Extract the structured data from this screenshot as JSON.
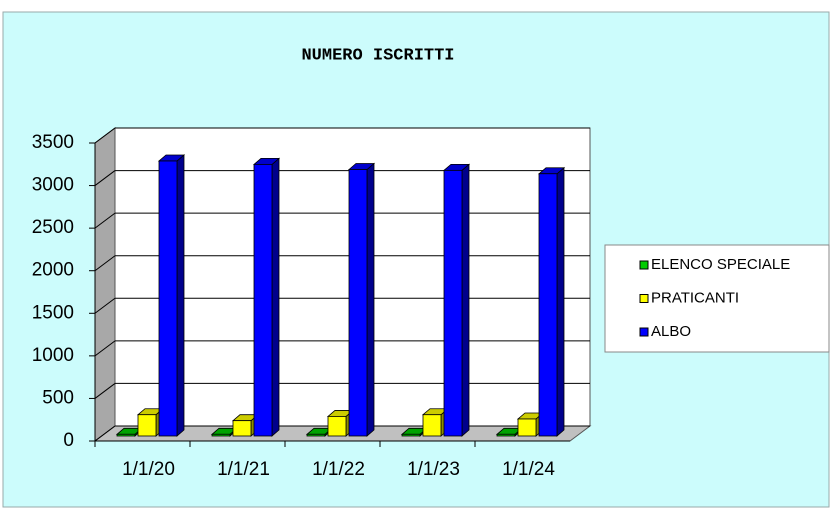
{
  "chart_data": {
    "type": "bar3d",
    "title": "NUMERO ISCRITTI",
    "categories": [
      "1/1/20",
      "1/1/21",
      "1/1/22",
      "1/1/23",
      "1/1/24"
    ],
    "series": [
      {
        "name": "ELENCO SPECIALE",
        "color": "#00cc00",
        "values": [
          20,
          20,
          20,
          20,
          20
        ]
      },
      {
        "name": "PRATICANTI",
        "color": "#ffff00",
        "values": [
          250,
          180,
          230,
          250,
          200
        ]
      },
      {
        "name": "ALBO",
        "color": "#0000ff",
        "values": [
          3230,
          3190,
          3130,
          3120,
          3080
        ]
      }
    ],
    "ylim": [
      0,
      3500
    ],
    "yticks": [
      0,
      500,
      1000,
      1500,
      2000,
      2500,
      3000,
      3500
    ],
    "grid": true,
    "legend": "right"
  }
}
